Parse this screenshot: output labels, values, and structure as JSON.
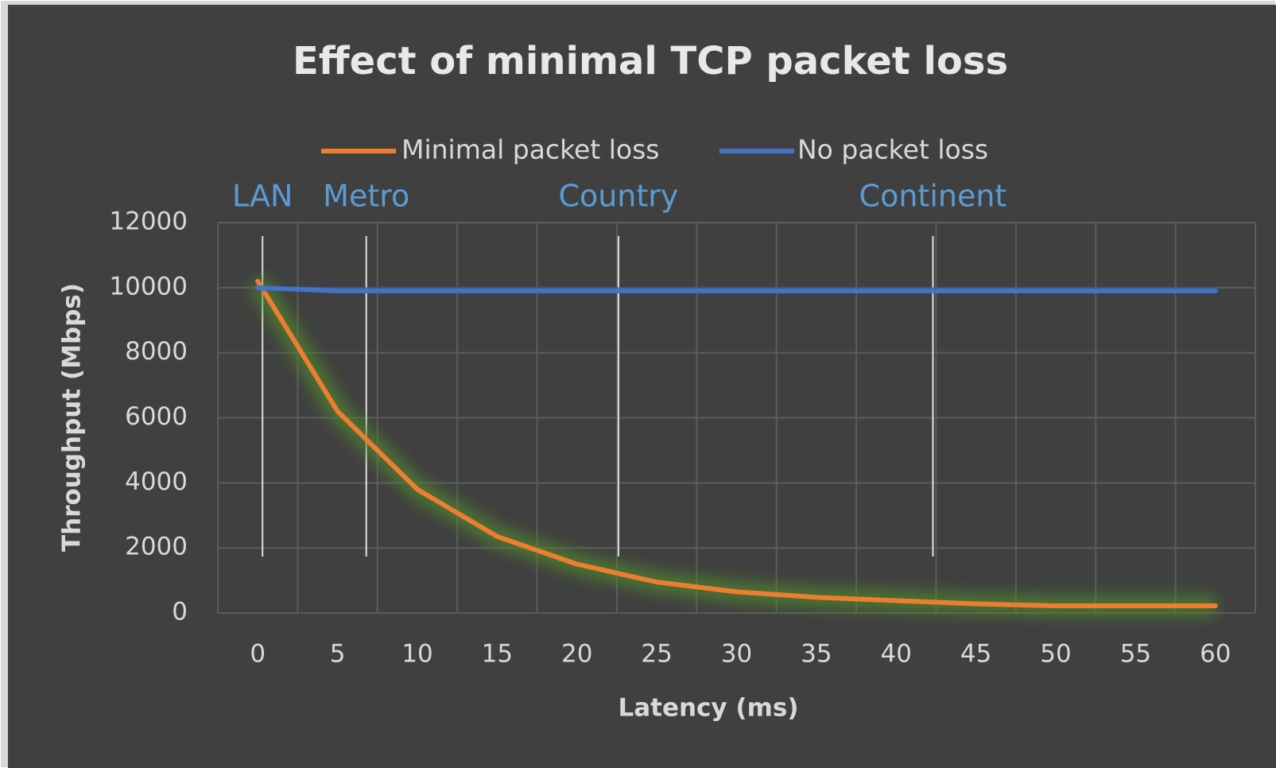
{
  "chart_data": {
    "type": "line",
    "title": "Effect of minimal TCP packet loss",
    "x_label": "Latency (ms)",
    "y_label": "Throughput (Mbps)",
    "categories": [
      0,
      5,
      10,
      15,
      20,
      25,
      30,
      35,
      40,
      45,
      50,
      55,
      60
    ],
    "series": [
      {
        "name": "Minimal packet loss",
        "color": "#ed7d31",
        "values": [
          10200,
          6200,
          3800,
          2350,
          1500,
          950,
          650,
          480,
          380,
          280,
          220,
          220,
          220
        ]
      },
      {
        "name": "No packet loss",
        "color": "#4472c4",
        "values": [
          10000,
          9900,
          9900,
          9900,
          9900,
          9900,
          9900,
          9900,
          9900,
          9900,
          9900,
          9900,
          9900
        ]
      }
    ],
    "ylim": [
      0,
      12000
    ],
    "yticks": [
      0,
      2000,
      4000,
      6000,
      8000,
      10000,
      12000
    ],
    "grid": true,
    "legend": "top",
    "annotations": [
      {
        "label": "LAN",
        "x": 0.3
      },
      {
        "label": "Metro",
        "x": 6.8
      },
      {
        "label": "Country",
        "x": 22.6
      },
      {
        "label": "Continent",
        "x": 42.3
      }
    ]
  }
}
